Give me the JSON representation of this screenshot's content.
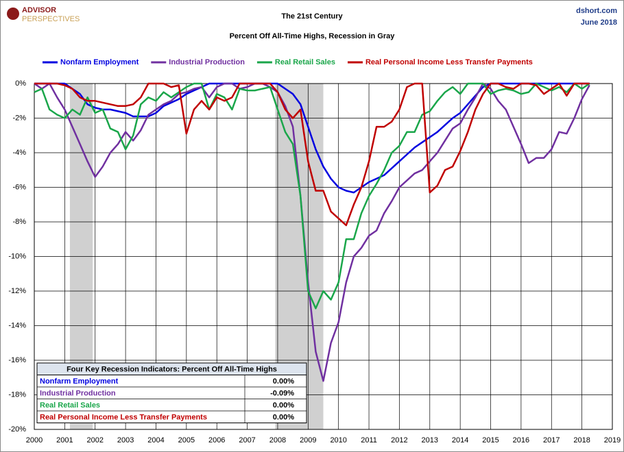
{
  "chart_data": {
    "type": "line",
    "title": "The 21st Century",
    "subtitle": "Percent Off All-Time Highs, Recession in Gray",
    "logo_top": "ADVISOR",
    "logo_bottom": "PERSPECTIVES",
    "source": "dshort.com",
    "date": "June 2018",
    "x": [
      2000,
      2000.25,
      2000.5,
      2000.75,
      2001,
      2001.25,
      2001.5,
      2001.75,
      2002,
      2002.25,
      2002.5,
      2002.75,
      2003,
      2003.25,
      2003.5,
      2003.75,
      2004,
      2004.25,
      2004.5,
      2004.75,
      2005,
      2005.25,
      2005.5,
      2005.75,
      2006,
      2006.25,
      2006.5,
      2006.75,
      2007,
      2007.25,
      2007.5,
      2007.75,
      2008,
      2008.25,
      2008.5,
      2008.75,
      2009,
      2009.25,
      2009.5,
      2009.75,
      2010,
      2010.25,
      2010.5,
      2010.75,
      2011,
      2011.25,
      2011.5,
      2011.75,
      2012,
      2012.25,
      2012.5,
      2012.75,
      2013,
      2013.25,
      2013.5,
      2013.75,
      2014,
      2014.25,
      2014.5,
      2014.75,
      2015,
      2015.25,
      2015.5,
      2015.75,
      2016,
      2016.25,
      2016.5,
      2016.75,
      2017,
      2017.25,
      2017.5,
      2017.75,
      2018,
      2018.25
    ],
    "series": [
      {
        "name": "Nonfarm Employment",
        "color": "#0000e0",
        "values": [
          0,
          0,
          0,
          0,
          0,
          -0.3,
          -0.6,
          -1.2,
          -1.4,
          -1.5,
          -1.5,
          -1.6,
          -1.7,
          -1.9,
          -1.9,
          -1.9,
          -1.7,
          -1.3,
          -1.1,
          -0.9,
          -0.6,
          -0.4,
          -0.2,
          0,
          0,
          0,
          0,
          0,
          0,
          0,
          0,
          0,
          0,
          -0.3,
          -0.6,
          -1.2,
          -2.5,
          -3.8,
          -4.8,
          -5.5,
          -6.0,
          -6.2,
          -6.3,
          -6.0,
          -5.7,
          -5.5,
          -5.3,
          -4.9,
          -4.5,
          -4.1,
          -3.7,
          -3.4,
          -3.1,
          -2.8,
          -2.4,
          -2.0,
          -1.7,
          -1.2,
          -0.7,
          -0.2,
          0,
          0,
          0,
          0,
          0,
          0,
          0,
          0,
          0,
          0,
          0,
          0,
          0,
          0
        ]
      },
      {
        "name": "Industrial Production",
        "color": "#7030a0",
        "values": [
          0,
          -0.3,
          0,
          -0.8,
          -1.5,
          -2.5,
          -3.5,
          -4.5,
          -5.4,
          -4.8,
          -4.0,
          -3.5,
          -2.8,
          -3.3,
          -2.7,
          -1.8,
          -1.5,
          -1.2,
          -1.0,
          -0.6,
          -0.5,
          -0.3,
          -0.2,
          -0.8,
          -0.2,
          0,
          0,
          -0.3,
          -0.2,
          0,
          0,
          -0.2,
          -0.5,
          -1.3,
          -2.5,
          -6.5,
          -11.5,
          -15.5,
          -17.2,
          -15.0,
          -13.8,
          -11.5,
          -10.0,
          -9.5,
          -8.8,
          -8.5,
          -7.5,
          -6.8,
          -6.0,
          -5.6,
          -5.2,
          -5.0,
          -4.5,
          -4.0,
          -3.3,
          -2.6,
          -2.3,
          -1.5,
          -0.8,
          0,
          -0.3,
          -1.0,
          -1.5,
          -2.5,
          -3.5,
          -4.6,
          -4.3,
          -4.3,
          -3.8,
          -2.8,
          -2.9,
          -2.0,
          -0.9,
          -0.09
        ]
      },
      {
        "name": "Real Retail Sales",
        "color": "#1aa64a",
        "values": [
          -0.5,
          -0.3,
          -1.5,
          -1.8,
          -2.0,
          -1.5,
          -1.8,
          -0.8,
          -1.7,
          -1.5,
          -2.6,
          -2.8,
          -3.8,
          -3.0,
          -1.2,
          -0.8,
          -1.0,
          -0.5,
          -0.8,
          -0.5,
          -0.2,
          0,
          0,
          -1.5,
          -0.6,
          -0.8,
          -1.5,
          -0.3,
          -0.4,
          -0.4,
          -0.3,
          -0.2,
          -1.5,
          -2.8,
          -3.5,
          -6.5,
          -12.0,
          -13.0,
          -12.0,
          -12.5,
          -11.5,
          -9.0,
          -9.0,
          -7.5,
          -6.5,
          -5.8,
          -5.0,
          -4.0,
          -3.6,
          -2.8,
          -2.8,
          -1.8,
          -1.6,
          -1.0,
          -0.5,
          -0.2,
          -0.6,
          0,
          0,
          0,
          -0.6,
          -0.4,
          -0.3,
          -0.4,
          -0.6,
          -0.5,
          0,
          -0.2,
          -0.4,
          -0.2,
          -0.5,
          0,
          -0.3,
          0
        ]
      },
      {
        "name": "Real Personal Income Less Transfer Payments",
        "color": "#c00000",
        "values": [
          0,
          0,
          0,
          0,
          -0.1,
          -0.3,
          -0.8,
          -1.0,
          -1.0,
          -1.1,
          -1.2,
          -1.3,
          -1.3,
          -1.2,
          -0.8,
          0,
          0,
          0,
          -0.2,
          -0.1,
          -2.9,
          -1.5,
          -1.0,
          -1.5,
          -0.8,
          -1.0,
          -0.8,
          0,
          0,
          0,
          0,
          0,
          -0.5,
          -1.5,
          -2.0,
          -1.5,
          -4.5,
          -6.2,
          -6.2,
          -7.4,
          -7.8,
          -8.2,
          -7.0,
          -6.0,
          -4.5,
          -2.5,
          -2.5,
          -2.2,
          -1.5,
          -0.2,
          0,
          0,
          -6.3,
          -5.9,
          -5.0,
          -4.8,
          -3.9,
          -2.8,
          -1.5,
          -0.6,
          0,
          0,
          -0.2,
          -0.3,
          0,
          0,
          -0.1,
          -0.6,
          -0.3,
          0,
          -0.7,
          0,
          0,
          0
        ]
      }
    ],
    "recessions": [
      [
        2001.17,
        2001.92
      ],
      [
        2007.92,
        2009.5
      ]
    ],
    "xlim": [
      2000,
      2019
    ],
    "xticks": [
      2000,
      2001,
      2002,
      2003,
      2004,
      2005,
      2006,
      2007,
      2008,
      2009,
      2010,
      2011,
      2012,
      2013,
      2014,
      2015,
      2016,
      2017,
      2018,
      2019
    ],
    "ylim": [
      -20,
      0
    ],
    "yticks": [
      {
        "value": 0,
        "label": "0%"
      },
      {
        "value": -2,
        "label": "-2%"
      },
      {
        "value": -4,
        "label": "-4%"
      },
      {
        "value": -6,
        "label": "-6%"
      },
      {
        "value": -8,
        "label": "-8%"
      },
      {
        "value": -10,
        "label": "-10%"
      },
      {
        "value": -12,
        "label": "-12%"
      },
      {
        "value": -14,
        "label": "-14%"
      },
      {
        "value": -16,
        "label": "-16%"
      },
      {
        "value": -18,
        "label": "-18%"
      },
      {
        "value": -20,
        "label": "-20%"
      }
    ],
    "grid": true,
    "table": {
      "title": "Four Key Recession Indicators: Percent Off All-Time Highs",
      "values": [
        0,
        -0.09,
        0,
        0
      ],
      "value_labels": [
        "0.00%",
        "-0.09%",
        "0.00%",
        "0.00%"
      ]
    }
  }
}
